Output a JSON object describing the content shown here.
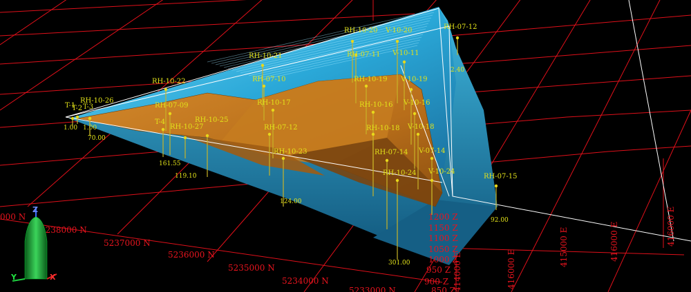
{
  "grid": {
    "northings": [
      "000 N",
      "5238000 N",
      "5237000 N",
      "5236000 N",
      "5235000 N",
      "5234000 N",
      "5233000 N"
    ],
    "elevations": [
      "1200 Z",
      "1150 Z",
      "1100 Z",
      "1050 Z",
      "1000 Z",
      "950 Z",
      "900 Z",
      "850 Z"
    ],
    "eastings": [
      "414000 E",
      "416000 E",
      "415000 E",
      "416000 E"
    ]
  },
  "holes": [
    {
      "name": "RH-10-20",
      "depth": ""
    },
    {
      "name": "V-10-20",
      "depth": ""
    },
    {
      "name": "RH-07-12",
      "depth": "2.40"
    },
    {
      "name": "RH-07-11",
      "depth": ""
    },
    {
      "name": "V-10-11",
      "depth": ""
    },
    {
      "name": "RH-10-21",
      "depth": ""
    },
    {
      "name": "RH-10-22",
      "depth": ""
    },
    {
      "name": "RH-07-10",
      "depth": ""
    },
    {
      "name": "RH-10-19",
      "depth": ""
    },
    {
      "name": "V-10-19",
      "depth": ""
    },
    {
      "name": "RH-10-26",
      "depth": "1.00"
    },
    {
      "name": "T-1",
      "depth": "1.00"
    },
    {
      "name": "T-2",
      "depth": ""
    },
    {
      "name": "T-3",
      "depth": "70.00"
    },
    {
      "name": "RH-07-09",
      "depth": ""
    },
    {
      "name": "RH-10-17",
      "depth": ""
    },
    {
      "name": "RH-10-16",
      "depth": ""
    },
    {
      "name": "V-10-16",
      "depth": ""
    },
    {
      "name": "T-4",
      "depth": ""
    },
    {
      "name": "RH-10-27",
      "depth": "161.55"
    },
    {
      "name": "RH-10-25",
      "depth": "119.10"
    },
    {
      "name": "RH-07-12",
      "depth": ""
    },
    {
      "name": "RH-10-18",
      "depth": ""
    },
    {
      "name": "V-10-18",
      "depth": ""
    },
    {
      "name": "RH-10-23",
      "depth": "124.00"
    },
    {
      "name": "RH-07-14",
      "depth": ""
    },
    {
      "name": "V-07-14",
      "depth": ""
    },
    {
      "name": "RH-10-24",
      "depth": "301.00"
    },
    {
      "name": "V-10-24",
      "depth": ""
    },
    {
      "name": "RH-07-15",
      "depth": "92.00"
    }
  ],
  "axes": {
    "z": "Z",
    "y": "Y",
    "x": "X"
  },
  "colors": {
    "grid": "#e0101a",
    "surface_top": "#2fb5e0",
    "orebody": "#c87820",
    "labels": "#e2e21a",
    "background": "#000000"
  }
}
